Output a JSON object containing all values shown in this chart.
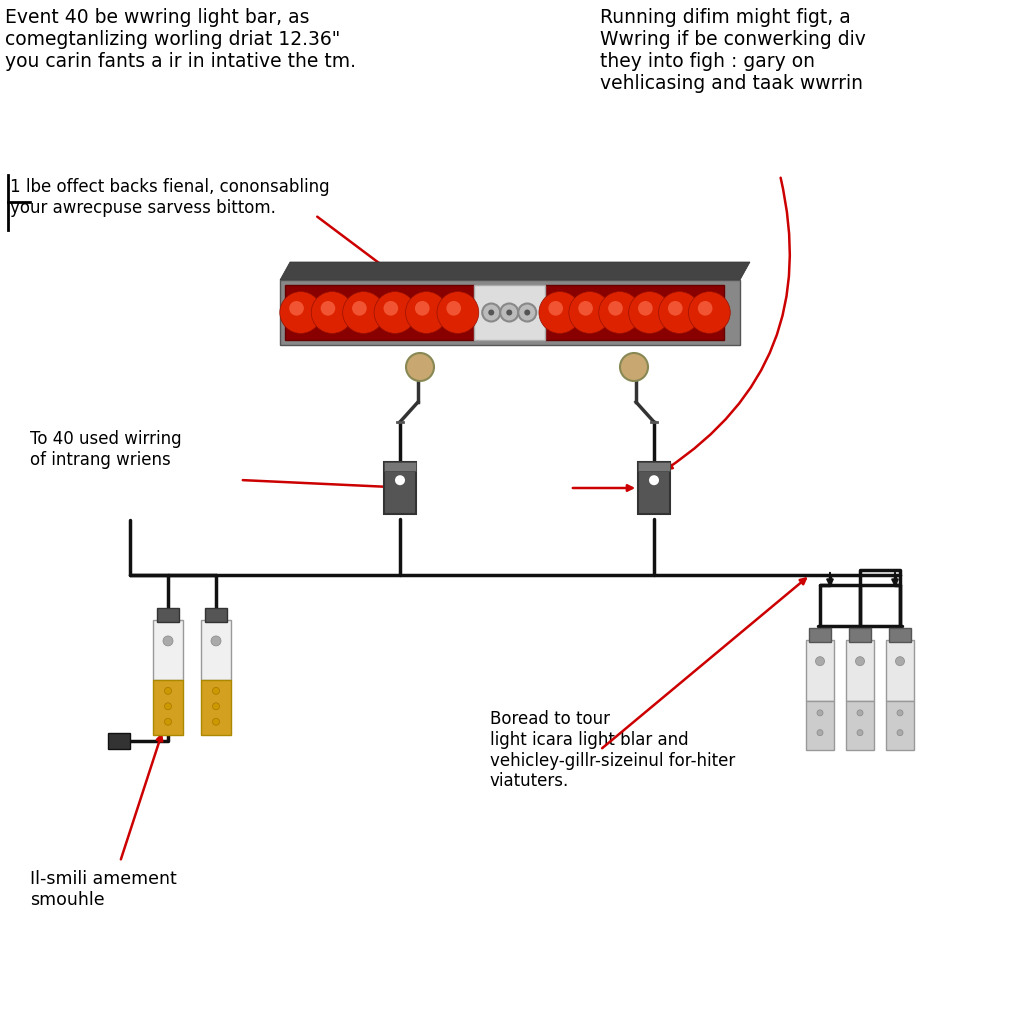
{
  "bg_color": "#ffffff",
  "text_top_left": "Event 40 be wwring light bar, as\ncomegtanlizing worling driat 12.36\"\nyou carin fants a ir in intative the tm.",
  "text_mid_left_annot": "1 lbe offect backs fienal, cononsabling\nyour awrecpuse sarvess bittom.",
  "text_lower_left_annot": "To 40 used wirring\nof intrang wriens",
  "text_top_right": "Running difim might figt, a\nWwring if be conwerking div\nthey into figh : gary on\nvehlicasing and taak wwrrin",
  "text_bottom_right": "Boread to tour\nlight icara light blar and\nvehicley-gillr-sizeinul for-hiter\nviatuters.",
  "text_bottom_left_label": "Il-smili amement\nsmouhle",
  "bar_body_color": "#888888",
  "bar_top_color": "#555555",
  "led_bg_color": "#cc0000",
  "led_dot_color": "#ff6666",
  "center_panel_color": "#dddddd",
  "center_panel_edge": "#aaaaaa",
  "center_circle_color": "#888888",
  "mount_circle_color": "#c8a870",
  "connector_box_color": "#555555",
  "wire_color": "#111111",
  "fuse_top_color": "#f0f0f0",
  "fuse_top_edge": "#999999",
  "fuse_bot_color_left": "#d4a020",
  "fuse_bot_color_right": "#cccccc",
  "fuse_bot_edge_left": "#aa8800",
  "fuse_bot_edge_right": "#999999",
  "arrow_color": "#cc0000",
  "black_plug_color": "#333333"
}
